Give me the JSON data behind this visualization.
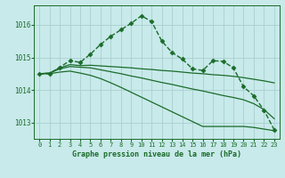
{
  "background_color": "#c8eaea",
  "grid_color": "#aacfcf",
  "line_color": "#1a6b2a",
  "title": "Graphe pression niveau de la mer (hPa)",
  "ylim": [
    1012.5,
    1016.6
  ],
  "xlim": [
    -0.5,
    23.5
  ],
  "yticks": [
    1013,
    1014,
    1015,
    1016
  ],
  "xtick_labels": [
    "0",
    "1",
    "2",
    "3",
    "4",
    "5",
    "6",
    "7",
    "8",
    "9",
    "10",
    "11",
    "12",
    "13",
    "14",
    "15",
    "16",
    "17",
    "18",
    "19",
    "20",
    "21",
    "22",
    "23"
  ],
  "series": [
    {
      "x": [
        0,
        1,
        2,
        3,
        4,
        5,
        6,
        7,
        8,
        9,
        10,
        11,
        12,
        13,
        14,
        15,
        16,
        17,
        18,
        19,
        20,
        21,
        22,
        23
      ],
      "y": [
        1014.5,
        1014.5,
        1014.7,
        1014.9,
        1014.85,
        1015.1,
        1015.4,
        1015.65,
        1015.85,
        1016.05,
        1016.28,
        1016.1,
        1015.5,
        1015.15,
        1014.95,
        1014.65,
        1014.6,
        1014.9,
        1014.88,
        1014.68,
        1014.1,
        1013.82,
        1013.38,
        1012.78
      ],
      "marker": "D",
      "marker_size": 2.5,
      "linewidth": 1.0,
      "linestyle": "--"
    },
    {
      "x": [
        0,
        1,
        2,
        3,
        4,
        5,
        6,
        7,
        8,
        9,
        10,
        11,
        12,
        13,
        14,
        15,
        16,
        17,
        18,
        19,
        20,
        21,
        22,
        23
      ],
      "y": [
        1014.5,
        1014.52,
        1014.68,
        1014.78,
        1014.75,
        1014.76,
        1014.74,
        1014.72,
        1014.7,
        1014.68,
        1014.65,
        1014.63,
        1014.6,
        1014.58,
        1014.55,
        1014.52,
        1014.5,
        1014.47,
        1014.45,
        1014.42,
        1014.38,
        1014.33,
        1014.28,
        1014.22
      ],
      "marker": null,
      "linewidth": 0.9,
      "linestyle": "-"
    },
    {
      "x": [
        0,
        1,
        2,
        3,
        4,
        5,
        6,
        7,
        8,
        9,
        10,
        11,
        12,
        13,
        14,
        15,
        16,
        17,
        18,
        19,
        20,
        21,
        22,
        23
      ],
      "y": [
        1014.5,
        1014.52,
        1014.65,
        1014.72,
        1014.7,
        1014.68,
        1014.62,
        1014.56,
        1014.5,
        1014.43,
        1014.37,
        1014.3,
        1014.23,
        1014.17,
        1014.1,
        1014.03,
        1013.97,
        1013.9,
        1013.83,
        1013.77,
        1013.7,
        1013.58,
        1013.4,
        1013.12
      ],
      "marker": null,
      "linewidth": 0.9,
      "linestyle": "-"
    },
    {
      "x": [
        0,
        1,
        2,
        3,
        4,
        5,
        6,
        7,
        8,
        9,
        10,
        11,
        12,
        13,
        14,
        15,
        16,
        17,
        18,
        19,
        20,
        21,
        22,
        23
      ],
      "y": [
        1014.5,
        1014.5,
        1014.55,
        1014.58,
        1014.52,
        1014.45,
        1014.35,
        1014.22,
        1014.08,
        1013.93,
        1013.78,
        1013.63,
        1013.48,
        1013.33,
        1013.18,
        1013.03,
        1012.88,
        1012.88,
        1012.88,
        1012.88,
        1012.88,
        1012.85,
        1012.8,
        1012.75
      ],
      "marker": null,
      "linewidth": 0.9,
      "linestyle": "-"
    }
  ]
}
